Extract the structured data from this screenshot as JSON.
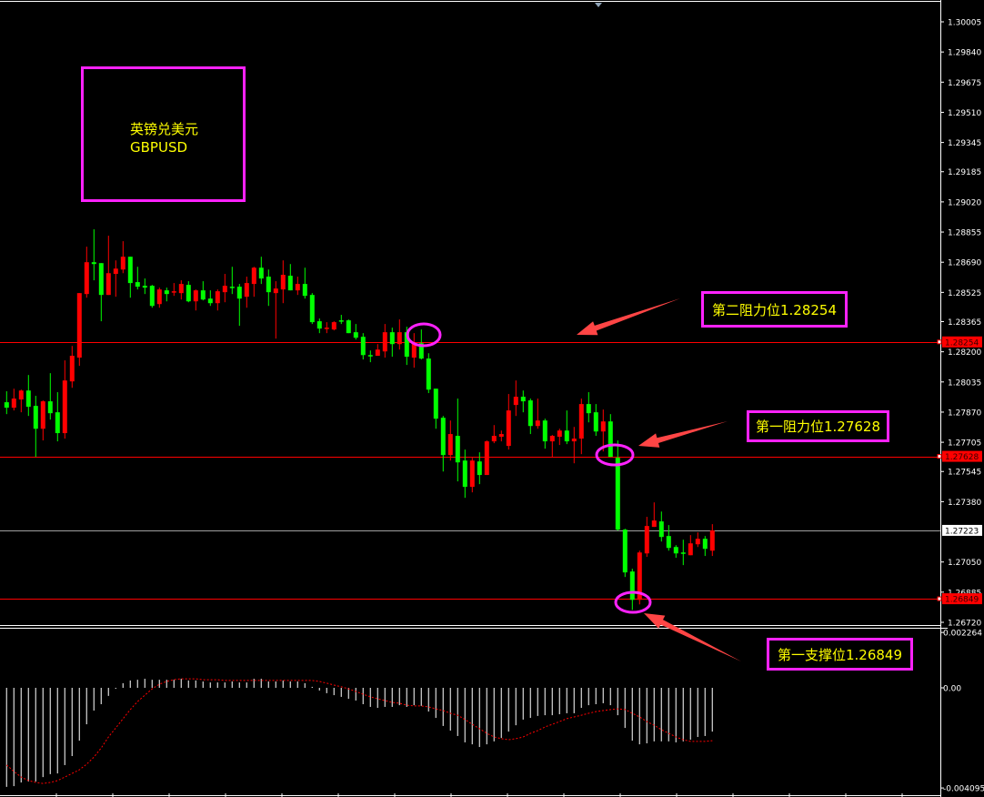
{
  "colors": {
    "background": "#000000",
    "bull": "#ff0000",
    "bear": "#00ff00",
    "level_line": "#ff0000",
    "last_price_line": "#a0a0a0",
    "annotation_border": "#ff22ff",
    "annotation_text": "#ffff00",
    "arrow": "#ff4545",
    "histogram": "#c8c8c8",
    "signal": "#ff0000",
    "axis_text": "#ffffff"
  },
  "annotations": {
    "title_cn": "英镑兑美元",
    "title_symbol": "GBPUSD",
    "resistance_2": "第二阻力位1.28254",
    "resistance_1": "第一阻力位1.27628",
    "support_1": "第一支撑位1.26849"
  },
  "chart_data": [
    {
      "type": "candlestick",
      "price_axis_ticks": [
        "1.30005",
        "1.29840",
        "1.29675",
        "1.29510",
        "1.29345",
        "1.29185",
        "1.29020",
        "1.28855",
        "1.28690",
        "1.28525",
        "1.28365",
        "1.28200",
        "1.28035",
        "1.27870",
        "1.27705",
        "1.27545",
        "1.27380",
        "1.27050",
        "1.26885",
        "1.26720"
      ],
      "ylim": [
        1.2672,
        1.30005
      ],
      "levels": [
        {
          "price": 1.28254,
          "label": "1.28254",
          "style": "red"
        },
        {
          "price": 1.27628,
          "label": "1.27628",
          "style": "red"
        },
        {
          "price": 1.27223,
          "label": "1.27223",
          "style": "last"
        },
        {
          "price": 1.26849,
          "label": "1.26849",
          "style": "red"
        }
      ],
      "ohlc": [
        [
          1.27924,
          1.27984,
          1.27859,
          1.27894
        ],
        [
          1.27894,
          1.27998,
          1.27879,
          1.27944
        ],
        [
          1.27939,
          1.27993,
          1.27869,
          1.27988
        ],
        [
          1.27988,
          1.28073,
          1.27849,
          1.27899
        ],
        [
          1.27904,
          1.27959,
          1.27625,
          1.27779
        ],
        [
          1.27779,
          1.27934,
          1.27715,
          1.27929
        ],
        [
          1.27929,
          1.28083,
          1.27829,
          1.27864
        ],
        [
          1.27869,
          1.27979,
          1.2771,
          1.27755
        ],
        [
          1.27755,
          1.28153,
          1.27725,
          1.28043
        ],
        [
          1.28038,
          1.28232,
          1.28003,
          1.28178
        ],
        [
          1.28168,
          1.28521,
          1.28123,
          1.28521
        ],
        [
          1.28516,
          1.28775,
          1.28496,
          1.2869
        ],
        [
          1.2869,
          1.2887,
          1.28591,
          1.2868
        ],
        [
          1.28685,
          1.28685,
          1.28367,
          1.28511
        ],
        [
          1.28511,
          1.28835,
          1.28511,
          1.2863
        ],
        [
          1.28626,
          1.287,
          1.28501,
          1.28655
        ],
        [
          1.2865,
          1.28805,
          1.2863,
          1.2872
        ],
        [
          1.2872,
          1.2872,
          1.28496,
          1.28576
        ],
        [
          1.28581,
          1.28665,
          1.28541,
          1.28556
        ],
        [
          1.28561,
          1.28601,
          1.28516,
          1.28551
        ],
        [
          1.28561,
          1.28566,
          1.28441,
          1.28451
        ],
        [
          1.28461,
          1.28551,
          1.28441,
          1.28541
        ],
        [
          1.28536,
          1.28551,
          1.28476,
          1.28516
        ],
        [
          1.28526,
          1.28576,
          1.28506,
          1.28531
        ],
        [
          1.28521,
          1.28591,
          1.28486,
          1.28571
        ],
        [
          1.28566,
          1.28586,
          1.28471,
          1.28476
        ],
        [
          1.28476,
          1.28541,
          1.28426,
          1.28536
        ],
        [
          1.28536,
          1.28586,
          1.28481,
          1.28486
        ],
        [
          1.28491,
          1.28536,
          1.28451,
          1.28466
        ],
        [
          1.28466,
          1.28541,
          1.28426,
          1.28531
        ],
        [
          1.28526,
          1.28626,
          1.28471,
          1.28561
        ],
        [
          1.28556,
          1.28665,
          1.28516,
          1.28551
        ],
        [
          1.28556,
          1.28571,
          1.28342,
          1.28491
        ],
        [
          1.28501,
          1.28611,
          1.28441,
          1.28576
        ],
        [
          1.28571,
          1.28665,
          1.28501,
          1.2866
        ],
        [
          1.2866,
          1.2872,
          1.28571,
          1.28601
        ],
        [
          1.28611,
          1.2865,
          1.28451,
          1.28526
        ],
        [
          1.28521,
          1.28586,
          1.28272,
          1.28546
        ],
        [
          1.28541,
          1.287,
          1.28466,
          1.28621
        ],
        [
          1.28616,
          1.2868,
          1.28536,
          1.28536
        ],
        [
          1.28536,
          1.28611,
          1.28511,
          1.28571
        ],
        [
          1.28571,
          1.2866,
          1.28491,
          1.28506
        ],
        [
          1.28511,
          1.28521,
          1.28352,
          1.28362
        ],
        [
          1.28367,
          1.28382,
          1.28302,
          1.28327
        ],
        [
          1.28327,
          1.28362,
          1.28302,
          1.28332
        ],
        [
          1.28322,
          1.28367,
          1.28317,
          1.28362
        ],
        [
          1.28372,
          1.28402,
          1.28352,
          1.28367
        ],
        [
          1.28372,
          1.28377,
          1.28302,
          1.28302
        ],
        [
          1.28307,
          1.28352,
          1.28267,
          1.28277
        ],
        [
          1.28282,
          1.28302,
          1.28158,
          1.28182
        ],
        [
          1.28182,
          1.28207,
          1.28143,
          1.28178
        ],
        [
          1.28178,
          1.28242,
          1.28178,
          1.28212
        ],
        [
          1.28202,
          1.28352,
          1.28168,
          1.28307
        ],
        [
          1.28307,
          1.28332,
          1.28173,
          1.28242
        ],
        [
          1.28242,
          1.28377,
          1.28212,
          1.28307
        ],
        [
          1.28307,
          1.28337,
          1.28128,
          1.28173
        ],
        [
          1.28168,
          1.28302,
          1.28113,
          1.28247
        ],
        [
          1.28247,
          1.28322,
          1.28158,
          1.28163
        ],
        [
          1.28163,
          1.28192,
          1.27974,
          1.27993
        ],
        [
          1.27998,
          1.27998,
          1.27779,
          1.27834
        ],
        [
          1.27839,
          1.27849,
          1.27545,
          1.27635
        ],
        [
          1.27635,
          1.27824,
          1.27605,
          1.2775
        ],
        [
          1.2774,
          1.27944,
          1.27491,
          1.27595
        ],
        [
          1.27605,
          1.27665,
          1.27401,
          1.27461
        ],
        [
          1.27461,
          1.2762,
          1.27431,
          1.27605
        ],
        [
          1.276,
          1.2765,
          1.27476,
          1.27526
        ],
        [
          1.27526,
          1.27715,
          1.27526,
          1.2771
        ],
        [
          1.2771,
          1.27799,
          1.277,
          1.2774
        ],
        [
          1.27735,
          1.27769,
          1.2771,
          1.2775
        ],
        [
          1.27685,
          1.27969,
          1.27665,
          1.27879
        ],
        [
          1.27909,
          1.28043,
          1.27849,
          1.27954
        ],
        [
          1.27954,
          1.27988,
          1.27869,
          1.27929
        ],
        [
          1.27934,
          1.27944,
          1.2775,
          1.27794
        ],
        [
          1.27794,
          1.27944,
          1.27779,
          1.27824
        ],
        [
          1.27824,
          1.27834,
          1.2767,
          1.2771
        ],
        [
          1.2771,
          1.27745,
          1.27625,
          1.2774
        ],
        [
          1.27735,
          1.27779,
          1.2769,
          1.27769
        ],
        [
          1.27769,
          1.27879,
          1.27695,
          1.2771
        ],
        [
          1.2771,
          1.27789,
          1.2759,
          1.27725
        ],
        [
          1.27725,
          1.27944,
          1.2764,
          1.27914
        ],
        [
          1.27914,
          1.27979,
          1.27814,
          1.27864
        ],
        [
          1.27869,
          1.27914,
          1.2774,
          1.27764
        ],
        [
          1.27764,
          1.27884,
          1.27655,
          1.27819
        ],
        [
          1.27819,
          1.27859,
          1.27625,
          1.27625
        ],
        [
          1.2762,
          1.27715,
          1.27222,
          1.27227
        ],
        [
          1.27227,
          1.27232,
          1.26968,
          1.26993
        ],
        [
          1.26998,
          1.27013,
          1.26788,
          1.26843
        ],
        [
          1.26843,
          1.27112,
          1.26818,
          1.27102
        ],
        [
          1.27097,
          1.27297,
          1.27078,
          1.27247
        ],
        [
          1.27242,
          1.27376,
          1.27242,
          1.27277
        ],
        [
          1.27272,
          1.27326,
          1.27162,
          1.27187
        ],
        [
          1.27192,
          1.27252,
          1.27112,
          1.27127
        ],
        [
          1.27132,
          1.27142,
          1.27073,
          1.27097
        ],
        [
          1.27102,
          1.27172,
          1.27033,
          1.27102
        ],
        [
          1.27087,
          1.27197,
          1.27087,
          1.27152
        ],
        [
          1.27147,
          1.27212,
          1.27132,
          1.27177
        ],
        [
          1.27177,
          1.27192,
          1.27083,
          1.27122
        ],
        [
          1.27112,
          1.27257,
          1.27083,
          1.27223
        ]
      ]
    },
    {
      "type": "bar",
      "indicator_axis_ticks": [
        "0.002264",
        "0.00",
        "-0.004095"
      ],
      "ylim": [
        -0.004095,
        0.002264
      ],
      "histogram": [
        -0.00405,
        -0.00402,
        -0.00387,
        -0.00383,
        -0.00383,
        -0.00365,
        -0.00353,
        -0.0035,
        -0.00316,
        -0.00279,
        -0.00216,
        -0.00149,
        -0.00093,
        -0.00067,
        -0.00033,
        -4e-05,
        0.00019,
        0.0003,
        0.00033,
        0.00037,
        0.00033,
        0.00033,
        0.00033,
        0.00033,
        0.00037,
        0.0003,
        0.0003,
        0.00026,
        0.00022,
        0.00022,
        0.00022,
        0.00026,
        0.00022,
        0.00022,
        0.00037,
        0.00037,
        0.00026,
        0.00026,
        0.0003,
        0.00026,
        0.00026,
        0.00019,
        4e-05,
        -0.00011,
        -0.00022,
        -0.0003,
        -0.00037,
        -0.00045,
        -0.00052,
        -0.00067,
        -0.00078,
        -0.00082,
        -0.00078,
        -0.00078,
        -0.00071,
        -0.00078,
        -0.00071,
        -0.00074,
        -0.00097,
        -0.00123,
        -0.00156,
        -0.00175,
        -0.00197,
        -0.00223,
        -0.00231,
        -0.00242,
        -0.00231,
        -0.00219,
        -0.00205,
        -0.00179,
        -0.00153,
        -0.0013,
        -0.00123,
        -0.00115,
        -0.00112,
        -0.00112,
        -0.00108,
        -0.00104,
        -0.00104,
        -0.00082,
        -0.00071,
        -0.00067,
        -0.00063,
        -0.00071,
        -0.00112,
        -0.00164,
        -0.00216,
        -0.00231,
        -0.00227,
        -0.00219,
        -0.00219,
        -0.00219,
        -0.00223,
        -0.00219,
        -0.00212,
        -0.00201,
        -0.00197,
        -0.00179
      ],
      "signal": [
        -0.00316,
        -0.00342,
        -0.00365,
        -0.00379,
        -0.00387,
        -0.00391,
        -0.00387,
        -0.00379,
        -0.00365,
        -0.0035,
        -0.00335,
        -0.00312,
        -0.00283,
        -0.00246,
        -0.00201,
        -0.00164,
        -0.00126,
        -0.00089,
        -0.00056,
        -0.0003,
        -4e-05,
        0.00015,
        0.00026,
        0.00033,
        0.00037,
        0.00037,
        0.00037,
        0.00033,
        0.00033,
        0.00033,
        0.0003,
        0.0003,
        0.0003,
        0.0003,
        0.0003,
        0.0003,
        0.0003,
        0.0003,
        0.0003,
        0.0003,
        0.0003,
        0.0003,
        0.0003,
        0.00026,
        0.00019,
        0.00011,
        4e-05,
        -4e-05,
        -0.00015,
        -0.00026,
        -0.00037,
        -0.00045,
        -0.00052,
        -0.0006,
        -0.00063,
        -0.00071,
        -0.00074,
        -0.00074,
        -0.00078,
        -0.00086,
        -0.00093,
        -0.00104,
        -0.00112,
        -0.0013,
        -0.00149,
        -0.00167,
        -0.00186,
        -0.00201,
        -0.00208,
        -0.00212,
        -0.00208,
        -0.00201,
        -0.00186,
        -0.00175,
        -0.0016,
        -0.00149,
        -0.00138,
        -0.00126,
        -0.00119,
        -0.00112,
        -0.00104,
        -0.00097,
        -0.00093,
        -0.00089,
        -0.00086,
        -0.00089,
        -0.00104,
        -0.00119,
        -0.00138,
        -0.00153,
        -0.00171,
        -0.00186,
        -0.00201,
        -0.00212,
        -0.00219,
        -0.00219,
        -0.00219,
        -0.00216
      ]
    }
  ]
}
